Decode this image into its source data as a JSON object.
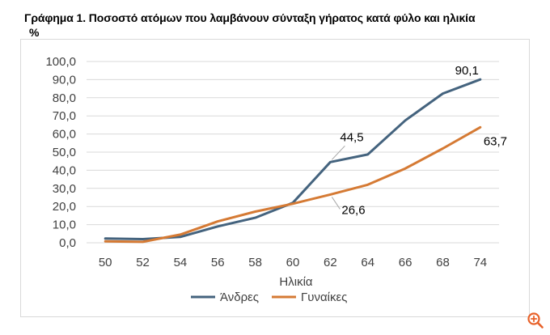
{
  "figure": {
    "title": "Γράφημα 1. Ποσοστό  ατόμων που λαμβάνουν σύνταξη γήρατος κατά φύλο και ηλικία",
    "unit": "%"
  },
  "overlay": {
    "zoom_icon": "zoom-in-icon",
    "zoom_color": "#e8622a"
  },
  "chart_data": {
    "type": "line",
    "title": "Γράφημα 1. Ποσοστό  ατόμων που λαμβάνουν σύνταξη γήρατος κατά φύλο και ηλικία",
    "xlabel": "Ηλικία",
    "ylabel": "%",
    "categories": [
      "50",
      "52",
      "54",
      "56",
      "58",
      "60",
      "62",
      "64",
      "66",
      "68",
      "74"
    ],
    "ylim": [
      0,
      100
    ],
    "ytick_step": 10,
    "ytick_labels": [
      "0,0",
      "10,0",
      "20,0",
      "30,0",
      "40,0",
      "50,0",
      "60,0",
      "70,0",
      "80,0",
      "90,0",
      "100,0"
    ],
    "grid": "horizontal",
    "legend_position": "bottom",
    "series": [
      {
        "name": "Άνδρες",
        "color": "#44637e",
        "values": [
          2.3,
          2.0,
          3.2,
          9.0,
          13.8,
          22.0,
          44.5,
          48.7,
          67.5,
          82.3,
          90.1
        ]
      },
      {
        "name": "Γυναίκες",
        "color": "#d57a34",
        "values": [
          0.8,
          0.5,
          4.5,
          11.8,
          17.2,
          21.5,
          26.6,
          32.0,
          41.0,
          52.0,
          63.7
        ]
      }
    ],
    "annotations": [
      {
        "series": 0,
        "index": 6,
        "text": "44,5"
      },
      {
        "series": 0,
        "index": 10,
        "text": "90,1"
      },
      {
        "series": 1,
        "index": 6,
        "text": "26,6"
      },
      {
        "series": 1,
        "index": 10,
        "text": "63,7"
      }
    ]
  }
}
